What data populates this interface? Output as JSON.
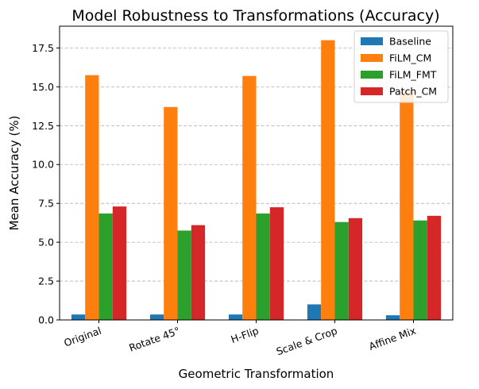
{
  "chart_data": {
    "type": "bar",
    "title": "Model Robustness to Transformations (Accuracy)",
    "xlabel": "Geometric Transformation",
    "ylabel": "Mean Accuracy (%)",
    "categories": [
      "Original",
      "Rotate 45°",
      "H-Flip",
      "Scale & Crop",
      "Affine Mix"
    ],
    "series": [
      {
        "name": "Baseline",
        "color": "#1f77b4",
        "values": [
          0.35,
          0.35,
          0.35,
          1.0,
          0.3
        ]
      },
      {
        "name": "FiLM_CM",
        "color": "#ff7f0e",
        "values": [
          15.75,
          13.7,
          15.7,
          18.0,
          14.7
        ]
      },
      {
        "name": "FiLM_FMT",
        "color": "#2ca02c",
        "values": [
          6.85,
          5.75,
          6.85,
          6.3,
          6.4
        ]
      },
      {
        "name": "Patch_CM",
        "color": "#d62728",
        "values": [
          7.3,
          6.1,
          7.25,
          6.55,
          6.7
        ]
      }
    ],
    "ylim": [
      0,
      18.9
    ],
    "yticks": [
      "0.0",
      "2.5",
      "5.0",
      "7.5",
      "10.0",
      "12.5",
      "15.0",
      "17.5"
    ],
    "grid": "y-dashed",
    "legend": "top-right"
  }
}
